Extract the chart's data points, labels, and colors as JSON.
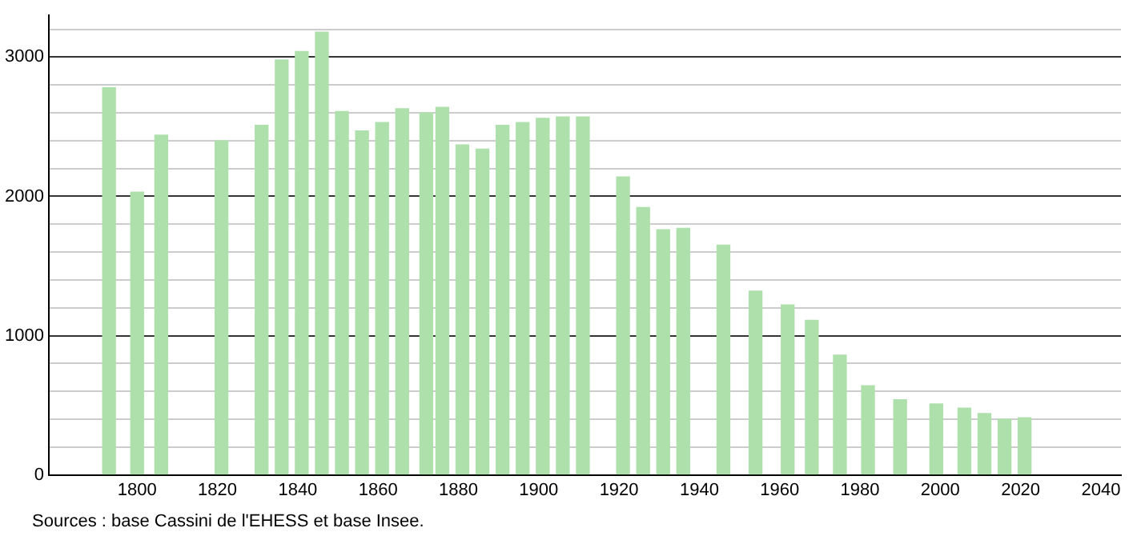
{
  "chart_data": {
    "type": "bar",
    "x": [
      1793,
      1800,
      1806,
      1821,
      1831,
      1836,
      1841,
      1846,
      1851,
      1856,
      1861,
      1866,
      1872,
      1876,
      1881,
      1886,
      1891,
      1896,
      1901,
      1906,
      1911,
      1921,
      1926,
      1931,
      1936,
      1946,
      1954,
      1962,
      1968,
      1975,
      1982,
      1990,
      1999,
      2006,
      2011,
      2016,
      2021
    ],
    "values": [
      2780,
      2030,
      2440,
      2400,
      2510,
      2980,
      3040,
      3180,
      2610,
      2470,
      2530,
      2630,
      2600,
      2640,
      2370,
      2340,
      2510,
      2530,
      2560,
      2570,
      2570,
      2140,
      1920,
      1760,
      1770,
      1650,
      1320,
      1220,
      1110,
      860,
      640,
      540,
      510,
      480,
      440,
      400,
      410
    ],
    "color": "#aee0ac",
    "xlim": [
      1778,
      2045
    ],
    "xticks": [
      1800,
      1820,
      1840,
      1860,
      1880,
      1900,
      1920,
      1940,
      1960,
      1980,
      2000,
      2020,
      2040
    ],
    "ylim": [
      0,
      3300
    ],
    "yticks": [
      0,
      {
        "value": 200,
        "label": null
      },
      {
        "value": 400,
        "label": null
      },
      {
        "value": 600,
        "label": null
      },
      {
        "value": 800,
        "label": null
      },
      1000,
      {
        "value": 1200,
        "label": null
      },
      {
        "value": 1400,
        "label": null
      },
      {
        "value": 1600,
        "label": null
      },
      {
        "value": 1800,
        "label": null
      },
      2000,
      {
        "value": 2200,
        "label": null
      },
      {
        "value": 2400,
        "label": null
      },
      {
        "value": 2600,
        "label": null
      },
      {
        "value": 2800,
        "label": null
      },
      3000,
      {
        "value": 3200,
        "label": null
      }
    ],
    "grid": "y",
    "annotations": [
      "Sources : base Cassini de l'EHESS et base Insee."
    ]
  }
}
